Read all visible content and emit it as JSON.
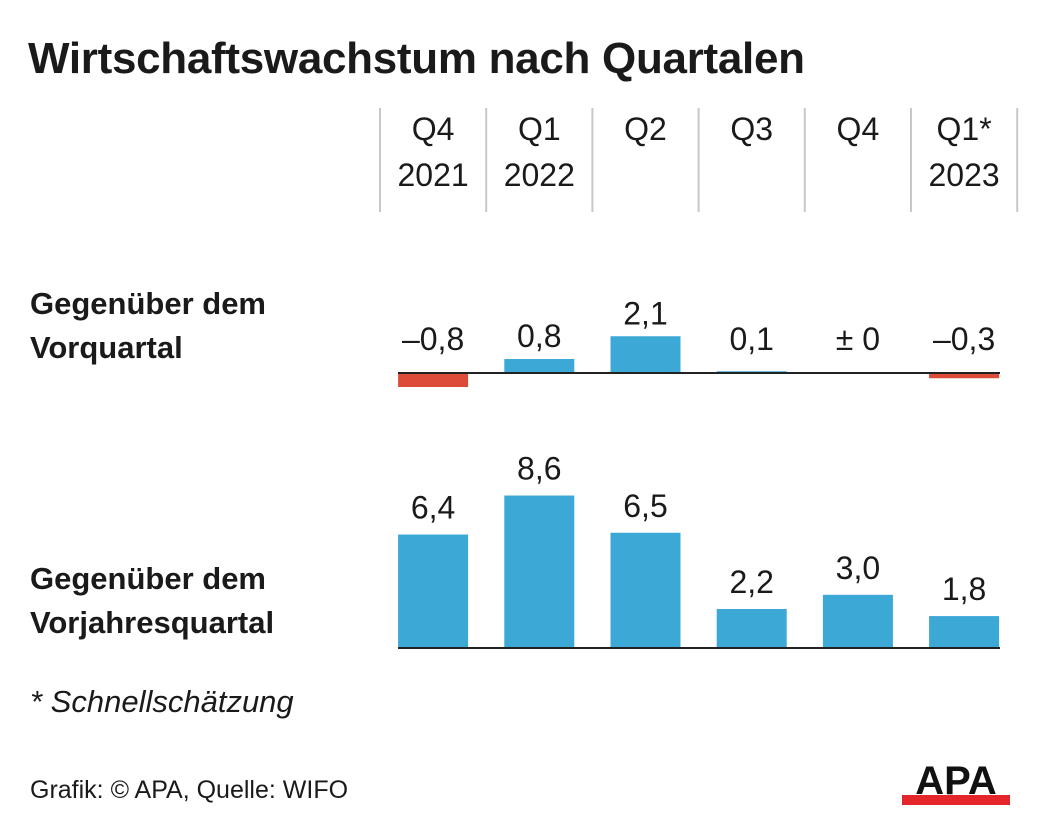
{
  "title": "Wirtschaftswachstum nach Quartalen",
  "chart_data": {
    "type": "bar",
    "categories": [
      {
        "quarter": "Q4",
        "year": "2021"
      },
      {
        "quarter": "Q1",
        "year": "2022"
      },
      {
        "quarter": "Q2",
        "year": ""
      },
      {
        "quarter": "Q3",
        "year": ""
      },
      {
        "quarter": "Q4",
        "year": ""
      },
      {
        "quarter": "Q1*",
        "year": "2023"
      }
    ],
    "series": [
      {
        "name": "Gegenüber dem Vorquartal",
        "values": [
          -0.8,
          0.8,
          2.1,
          0.1,
          0,
          -0.3
        ],
        "labels": [
          "–0,8",
          "0,8",
          "2,1",
          "0,1",
          "± 0",
          "–0,3"
        ]
      },
      {
        "name": "Gegenüber dem Vorjahresquartal",
        "values": [
          6.4,
          8.6,
          6.5,
          2.2,
          3.0,
          1.8
        ],
        "labels": [
          "6,4",
          "8,6",
          "6,5",
          "2,2",
          "3,0",
          "1,8"
        ]
      }
    ],
    "colors": {
      "positive": "#3ba8d6",
      "negative": "#dd4b39",
      "baseline": "#222222",
      "divider": "#c8c8c8"
    }
  },
  "row_labels": {
    "qoq": [
      "Gegenüber dem",
      "Vorquartal"
    ],
    "yoy": [
      "Gegenüber dem",
      "Vorjahresquartal"
    ]
  },
  "footnote": "* Schnellschätzung",
  "source": "Grafik: © APA, Quelle: WIFO",
  "logo": {
    "text": "APA",
    "colors": {
      "text": "#111111",
      "stripe": "#e4252a"
    }
  }
}
